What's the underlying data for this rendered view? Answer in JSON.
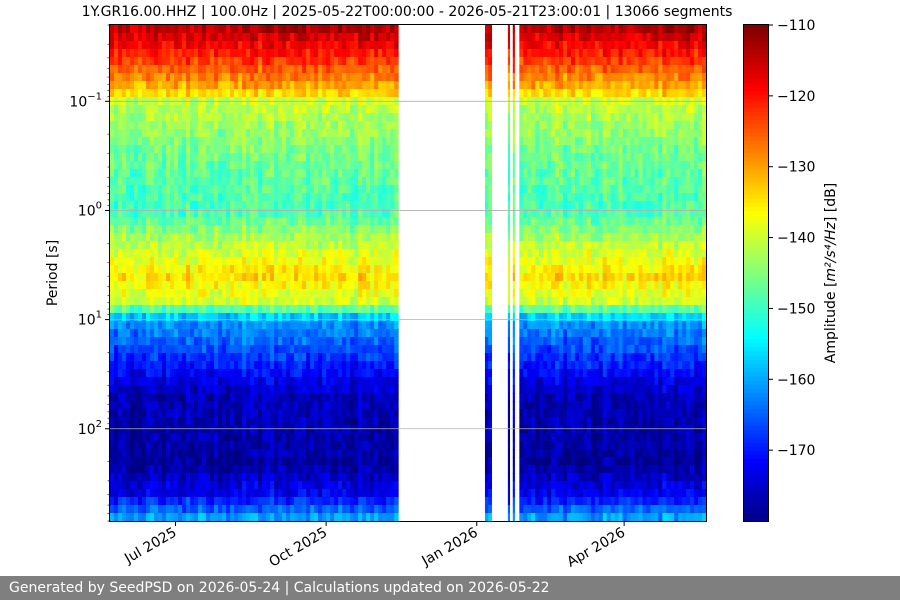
{
  "chart_data": {
    "type": "heatmap",
    "title": "1Y.GR16.00.HHZ | 100.0Hz | 2025-05-22T00:00:00 - 2026-05-21T23:00:01 | 13066 segments",
    "xlabel": "",
    "ylabel": "Period [s]",
    "x_range": [
      "2025-05-22",
      "2026-05-21"
    ],
    "x_ticks": [
      {
        "date": "2025-07-01",
        "label": "Jul 2025"
      },
      {
        "date": "2025-10-01",
        "label": "Oct 2025"
      },
      {
        "date": "2026-01-01",
        "label": "Jan 2026"
      },
      {
        "date": "2026-04-01",
        "label": "Apr 2026"
      }
    ],
    "y_scale": "log",
    "y_inverted": true,
    "y_range": [
      0.02,
      700
    ],
    "y_ticks": [
      {
        "value": 0.1,
        "base": "10",
        "exp": "−1"
      },
      {
        "value": 1,
        "base": "10",
        "exp": "0"
      },
      {
        "value": 10,
        "base": "10",
        "exp": "1"
      },
      {
        "value": 100,
        "base": "10",
        "exp": "2"
      }
    ],
    "grid": true,
    "colormap": "jet",
    "colorbar": {
      "label_main": "Amplitude [",
      "label_math": "m²/s⁴/Hz",
      "label_end": "] [dB]",
      "range": [
        -180,
        -110
      ],
      "ticks": [
        -110,
        -120,
        -130,
        -140,
        -150,
        -160,
        -170
      ]
    },
    "data_intervals": [
      [
        "2025-05-22",
        "2025-11-14"
      ],
      [
        "2026-01-06",
        "2026-01-10"
      ],
      [
        "2026-01-20",
        "2026-01-21"
      ],
      [
        "2026-01-23",
        "2026-01-24"
      ],
      [
        "2026-01-27",
        "2026-05-21"
      ]
    ],
    "gap_ranges": [
      [
        "2025-11-14",
        "2026-01-06"
      ]
    ],
    "psd_profile": [
      {
        "period": 0.02,
        "db": -113
      },
      {
        "period": 0.03,
        "db": -118
      },
      {
        "period": 0.05,
        "db": -125
      },
      {
        "period": 0.08,
        "db": -132
      },
      {
        "period": 0.1,
        "db": -140
      },
      {
        "period": 0.3,
        "db": -146
      },
      {
        "period": 1,
        "db": -149
      },
      {
        "period": 2,
        "db": -141
      },
      {
        "period": 4,
        "db": -134
      },
      {
        "period": 7,
        "db": -140
      },
      {
        "period": 10,
        "db": -160
      },
      {
        "period": 20,
        "db": -167
      },
      {
        "period": 50,
        "db": -176
      },
      {
        "period": 200,
        "db": -178
      },
      {
        "period": 400,
        "db": -172
      },
      {
        "period": 700,
        "db": -158
      }
    ]
  },
  "footer": {
    "text": "Generated by SeedPSD on 2026-05-24 | Calculations updated on 2026-05-22"
  }
}
